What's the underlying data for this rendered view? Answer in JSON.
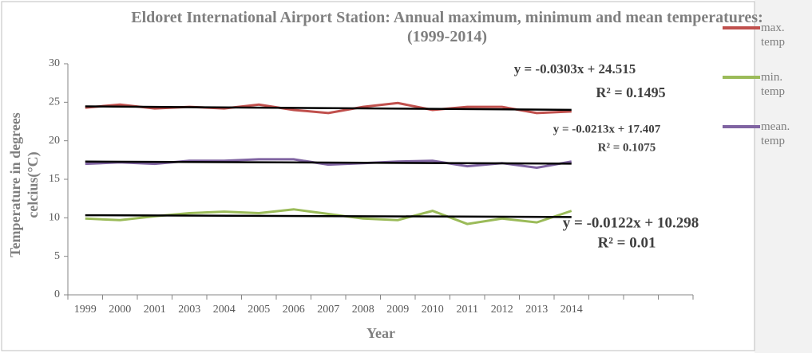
{
  "chart_data": {
    "type": "line",
    "title": "Eldoret International Airport Station: Annual maximum, minimum and mean temperatures: (1999-2014)",
    "x_label": "Year",
    "y_label": "Temperature in degrees celcius(°C)",
    "categories": [
      "1999",
      "2000",
      "2001",
      "2003",
      "2004",
      "2005",
      "2006",
      "2007",
      "2008",
      "2009",
      "2010",
      "2011",
      "2012",
      "2013",
      "2014",
      null,
      null,
      null
    ],
    "series": [
      {
        "name": "max. temp",
        "color": "#c0504d",
        "values": [
          24.3,
          24.7,
          24.2,
          24.4,
          24.2,
          24.7,
          24.0,
          23.6,
          24.4,
          24.9,
          24.0,
          24.4,
          24.4,
          23.6,
          23.8,
          null,
          null,
          null
        ]
      },
      {
        "name": "min. temp",
        "color": "#9bbb59",
        "values": [
          9.9,
          9.7,
          10.2,
          10.6,
          10.8,
          10.6,
          11.1,
          10.5,
          9.9,
          9.7,
          10.9,
          9.2,
          9.9,
          9.4,
          10.9,
          null,
          null,
          null
        ]
      },
      {
        "name": "mean. temp",
        "color": "#8064a2",
        "values": [
          17.0,
          17.2,
          17.0,
          17.4,
          17.4,
          17.6,
          17.6,
          16.9,
          17.1,
          17.3,
          17.4,
          16.7,
          17.1,
          16.5,
          17.3,
          null,
          null,
          null
        ]
      }
    ],
    "trendline_color": "#000000",
    "annotations": [
      "y = -0.0303x + 24.515",
      "R² = 0.1495",
      "y = -0.0213x + 17.407",
      "R² = 0.1075",
      "y = -0.0122x + 10.298",
      "R² = 0.01"
    ],
    "ylim": [
      0,
      30
    ],
    "yticks": [
      0,
      5,
      10,
      15,
      20,
      25,
      30
    ],
    "grid": false
  }
}
